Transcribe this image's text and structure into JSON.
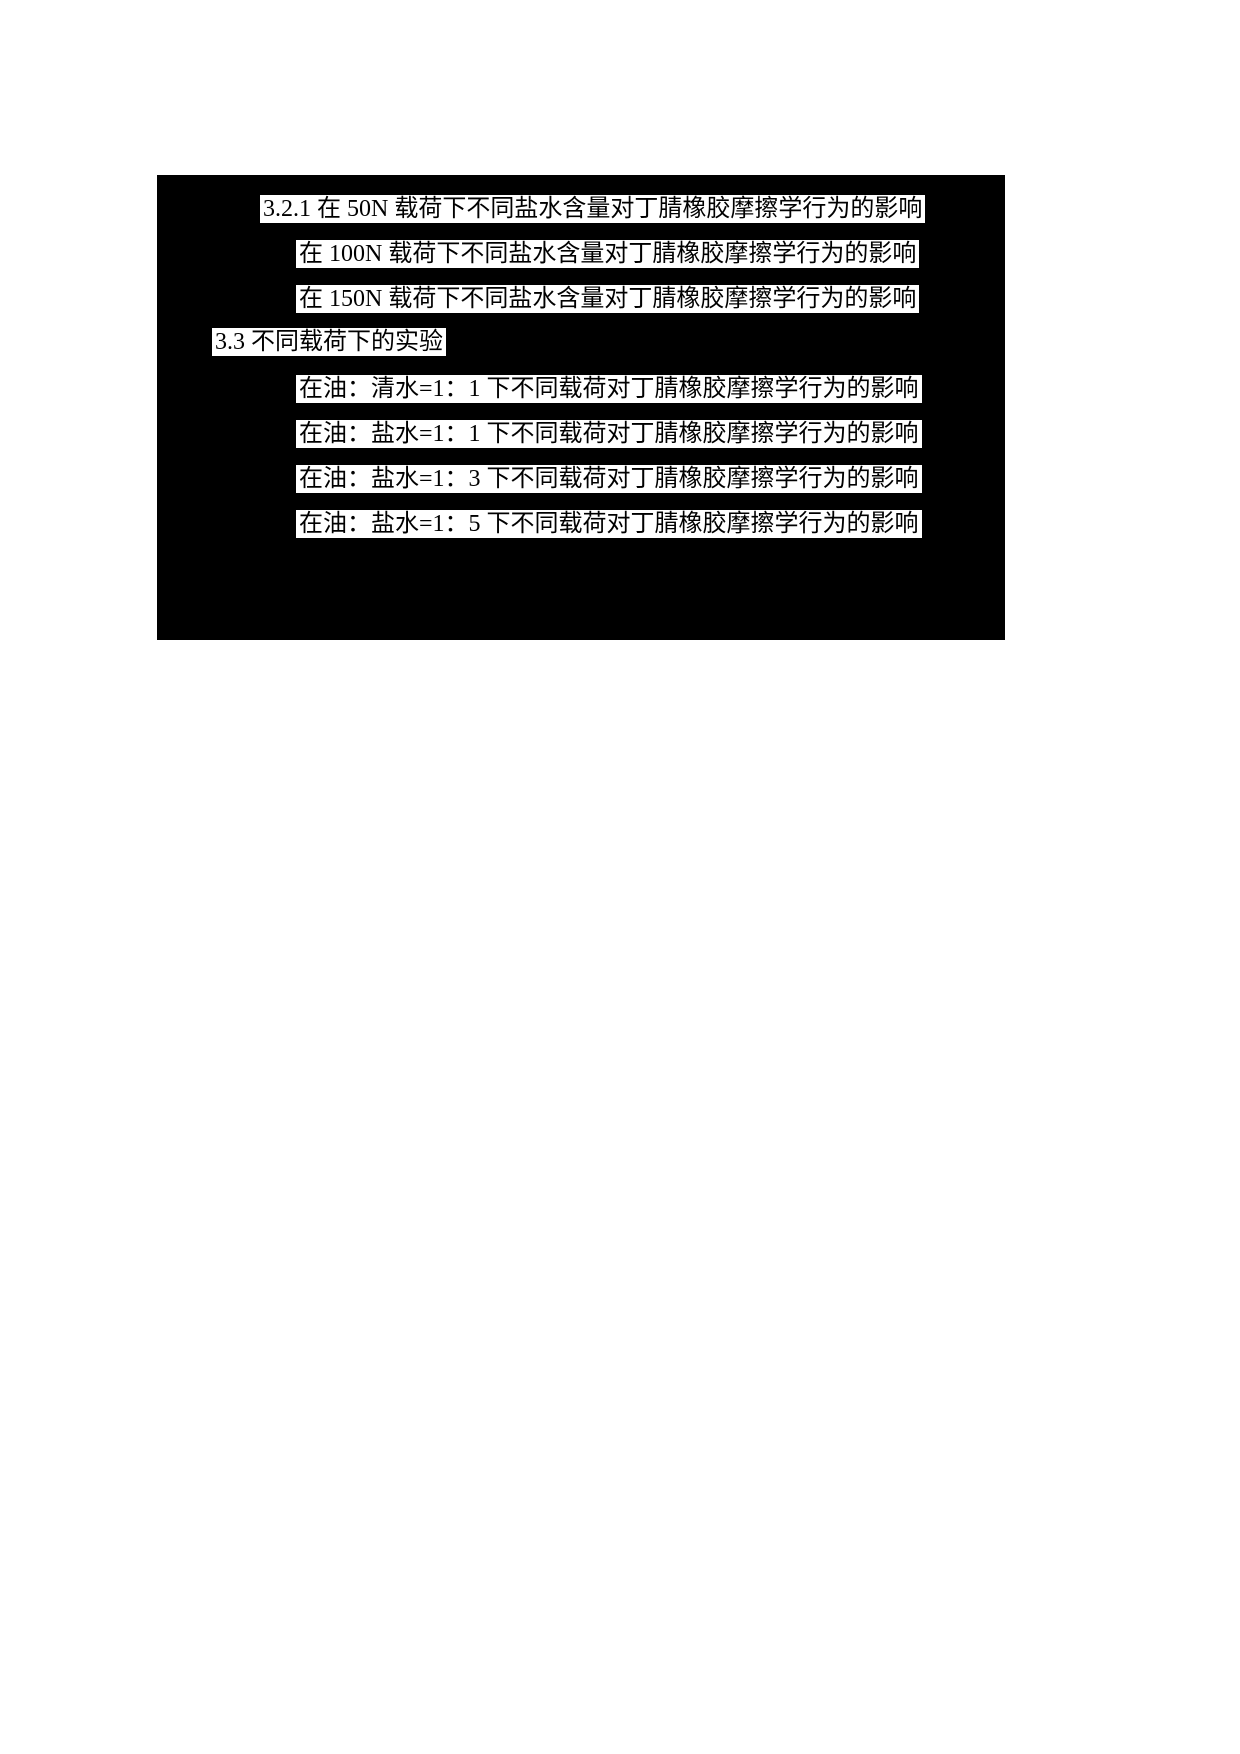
{
  "page": {
    "background_color": "#ffffff",
    "panel_color": "#000000",
    "highlight_color": "#ffffff",
    "text_color": "#000000"
  },
  "document": {
    "lines": [
      {
        "pre": "3.2.1 在 50N 载荷下不同",
        "marked": "盐水含量",
        "post": "对丁腈橡胶摩擦学行为的影响"
      },
      {
        "pre": "在 100N 载荷下不同",
        "marked": "盐水含量",
        "post": "对丁腈橡胶摩擦学行为的影响"
      },
      {
        "pre": "在 150N 载荷下不同",
        "marked": "盐水含量",
        "post": "对丁腈橡胶摩擦学行为的影响"
      },
      {
        "pre": "3.3 不同载荷下的实验",
        "marked": "",
        "post": ""
      },
      {
        "pre": "在油：",
        "marked": "清水",
        "post": "=1：1 下不同载荷对丁腈橡胶摩擦学行为的影响"
      },
      {
        "pre": "在油：",
        "marked": "盐水",
        "post": "=1：1 下不同载荷对丁腈橡胶摩擦学行为的影响"
      },
      {
        "pre": "在油：",
        "marked": "盐水",
        "post": "=1：3 下不同载荷对丁腈橡胶摩擦学行为的影响"
      },
      {
        "pre": "在油：",
        "marked": "盐水",
        "post": "=1：5 下不同载荷对丁腈橡胶摩擦学行为的影响"
      }
    ]
  }
}
